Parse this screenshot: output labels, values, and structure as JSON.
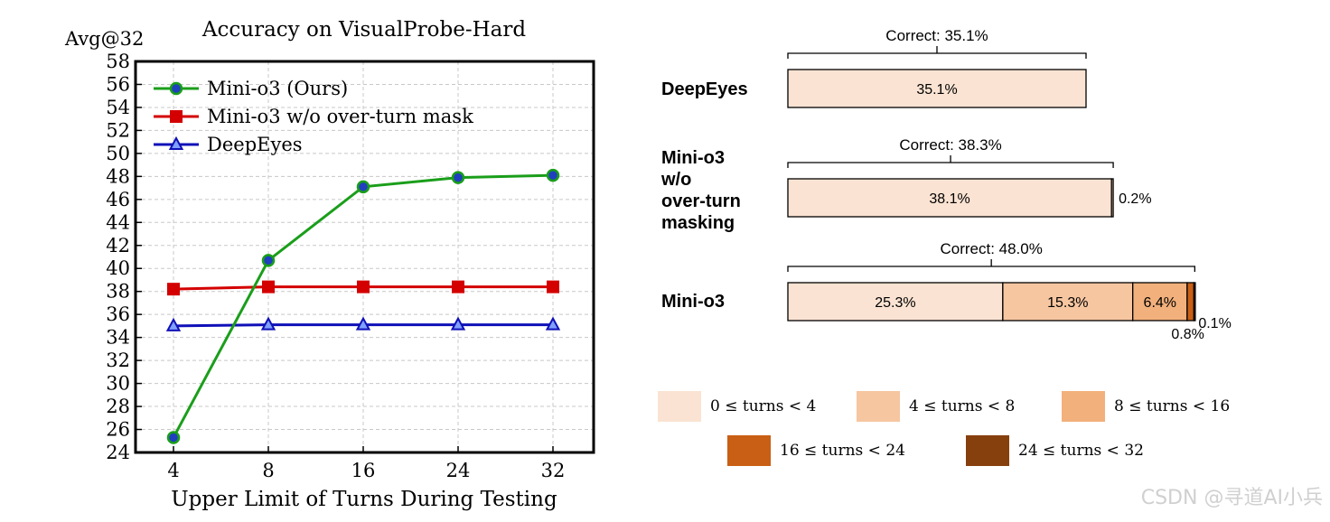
{
  "chart_data": [
    {
      "type": "line",
      "title": "Accuracy on VisualProbe-Hard",
      "ylabel": "Avg@32",
      "xlabel": "Upper Limit of Turns During Testing",
      "categories": [
        "4",
        "8",
        "16",
        "24",
        "32"
      ],
      "ylim": [
        24,
        58
      ],
      "yticks": [
        24,
        26,
        28,
        30,
        32,
        34,
        36,
        38,
        40,
        42,
        44,
        46,
        48,
        50,
        52,
        54,
        56,
        58
      ],
      "grid": true,
      "legend_position": "top-left",
      "series": [
        {
          "name": "Mini-o3 (Ours)",
          "values": [
            25.3,
            40.7,
            47.1,
            47.9,
            48.1
          ],
          "color": "#1a9e1a",
          "marker": "circle",
          "marker_fill": "#1f3fbf"
        },
        {
          "name": "Mini-o3 w/o over-turn mask",
          "values": [
            38.2,
            38.4,
            38.4,
            38.4,
            38.4
          ],
          "color": "#d40000",
          "marker": "square",
          "marker_fill": "#d40000"
        },
        {
          "name": "DeepEyes",
          "values": [
            35.0,
            35.1,
            35.1,
            35.1,
            35.1
          ],
          "color": "#1010b8",
          "marker": "triangle",
          "marker_fill": "#7fa0ff"
        }
      ]
    },
    {
      "type": "bar",
      "orientation": "horizontal-stacked",
      "categories": [
        "DeepEyes",
        "Mini-o3\nw/o\nover-turn\nmasking",
        "Mini-o3"
      ],
      "correct_labels": [
        "Correct: 35.1%",
        "Correct: 38.3%",
        "Correct: 48.0%"
      ],
      "legend": [
        {
          "label": "0 ≤ turns < 4",
          "color": "#fae3d2"
        },
        {
          "label": "4 ≤ turns < 8",
          "color": "#f6c6a1"
        },
        {
          "label": "8 ≤ turns < 16",
          "color": "#f2b07c"
        },
        {
          "label": "16 ≤ turns < 24",
          "color": "#c85f14"
        },
        {
          "label": "24 ≤ turns < 32",
          "color": "#86400e"
        }
      ],
      "rows": [
        {
          "segments": [
            {
              "bin": 0,
              "value": 35.1,
              "label": "35.1%"
            }
          ]
        },
        {
          "segments": [
            {
              "bin": 0,
              "value": 38.1,
              "label": "38.1%"
            },
            {
              "bin": 1,
              "value": 0.2,
              "label": "0.2%"
            }
          ]
        },
        {
          "segments": [
            {
              "bin": 0,
              "value": 25.3,
              "label": "25.3%"
            },
            {
              "bin": 1,
              "value": 15.3,
              "label": "15.3%"
            },
            {
              "bin": 2,
              "value": 6.4,
              "label": "6.4%"
            },
            {
              "bin": 3,
              "value": 0.8,
              "label": "0.8%"
            },
            {
              "bin": 4,
              "value": 0.1,
              "label": "0.1%"
            }
          ]
        }
      ]
    }
  ],
  "watermark": "CSDN @寻道AI小兵"
}
